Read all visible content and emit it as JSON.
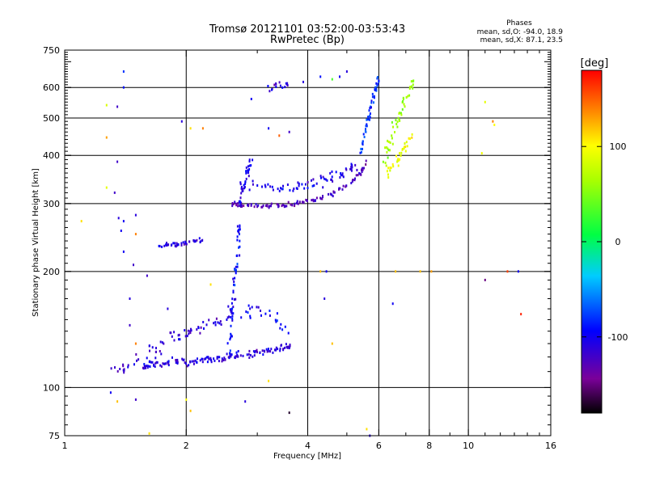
{
  "chart_data": {
    "type": "scatter",
    "title": "Tromsø 20121101 03:52:00-03:53:43",
    "subtitle": "RwPretec (Bp)",
    "xlabel": "Frequency [MHz]",
    "ylabel": "Stationary phase Virtual Height [km]",
    "x_scale": "log",
    "y_scale": "log",
    "xlim": [
      1,
      16
    ],
    "ylim": [
      75,
      750
    ],
    "x_ticks": [
      1,
      2,
      4,
      6,
      8,
      10,
      16
    ],
    "y_ticks": [
      75,
      100,
      200,
      300,
      400,
      500,
      600,
      750
    ],
    "x_gridlines": [
      2,
      4,
      6,
      8,
      10
    ],
    "y_gridlines": [
      100,
      200,
      300,
      400,
      500,
      600
    ],
    "grid": true,
    "stats": {
      "heading": "Phases",
      "line_o": "mean, sd,O: -94.0, 18.9",
      "line_x": "mean, sd,X: 87.1, 23.5"
    },
    "colorbar": {
      "label": "[deg]",
      "range": [
        -180,
        180
      ],
      "ticks": [
        100,
        0,
        -100
      ],
      "tick_labels": [
        "100",
        "0",
        "-100"
      ]
    },
    "traces": [
      {
        "x": [
          1.55,
          1.6,
          1.66,
          1.75,
          1.85,
          1.95,
          2.05,
          2.15,
          2.25,
          2.35,
          2.45,
          2.55,
          2.65,
          2.8,
          2.95,
          3.1,
          3.25,
          3.4,
          3.55,
          3.65
        ],
        "y": [
          112,
          114,
          116,
          115,
          117,
          118,
          116,
          117,
          118,
          118,
          119,
          120,
          121,
          122,
          123,
          124,
          125,
          126,
          127,
          128
        ],
        "phase": -110,
        "jitter": 0.03
      },
      {
        "x": [
          1.3,
          1.4,
          1.55,
          1.7,
          1.85,
          2.0,
          2.15,
          2.3,
          2.45,
          2.6
        ],
        "y": [
          110,
          113,
          120,
          128,
          133,
          138,
          142,
          146,
          150,
          155
        ],
        "phase": -115,
        "jitter": 0.06
      },
      {
        "x": [
          2.55,
          2.58,
          2.6,
          2.62,
          2.65,
          2.68,
          2.7,
          2.72
        ],
        "y": [
          120,
          140,
          160,
          180,
          200,
          220,
          250,
          270
        ],
        "phase": -95,
        "jitter": 0.035
      },
      {
        "x": [
          1.7,
          1.8,
          1.9,
          2.0,
          2.1,
          2.2
        ],
        "y": [
          232,
          234,
          236,
          238,
          240,
          242
        ],
        "phase": -110,
        "jitter": 0.02
      },
      {
        "x": [
          2.6,
          2.7,
          2.8,
          3.0,
          3.2,
          3.4,
          3.6,
          3.8,
          4.0,
          4.3,
          4.6,
          4.9,
          5.2,
          5.4,
          5.6
        ],
        "y": [
          300,
          298,
          297,
          296,
          295,
          296,
          298,
          301,
          305,
          310,
          318,
          330,
          345,
          360,
          385
        ],
        "phase": -125,
        "jitter": 0.02
      },
      {
        "x": [
          2.7,
          3.0,
          3.3,
          3.6,
          3.9,
          4.2,
          4.5,
          4.8,
          5.1,
          5.4
        ],
        "y": [
          340,
          335,
          330,
          330,
          335,
          340,
          350,
          360,
          370,
          385
        ],
        "phase": -105,
        "jitter": 0.05
      },
      {
        "x": [
          2.7,
          2.75,
          2.8,
          2.85,
          2.9
        ],
        "y": [
          300,
          320,
          345,
          370,
          395
        ],
        "phase": -105,
        "jitter": 0.03
      },
      {
        "x": [
          5.4,
          5.5,
          5.6,
          5.7,
          5.8,
          5.9,
          6.0
        ],
        "y": [
          400,
          440,
          480,
          520,
          560,
          600,
          630
        ],
        "phase": -80,
        "jitter": 0.03
      },
      {
        "x": [
          6.2,
          6.3,
          6.5,
          6.7,
          6.9,
          7.1,
          7.3
        ],
        "y": [
          380,
          420,
          460,
          500,
          540,
          580,
          620
        ],
        "phase": 60,
        "jitter": 0.05
      },
      {
        "x": [
          6.3,
          6.5,
          6.8,
          7.0,
          7.3
        ],
        "y": [
          360,
          380,
          400,
          420,
          450
        ],
        "phase": 95,
        "jitter": 0.05
      },
      {
        "x": [
          3.2,
          3.4,
          3.6
        ],
        "y": [
          600,
          610,
          605
        ],
        "phase": -110,
        "jitter": 0.03
      },
      {
        "x": [
          2.7,
          3.0,
          3.3,
          3.6
        ],
        "y": [
          150,
          160,
          150,
          140
        ],
        "phase": -100,
        "jitter": 0.08
      }
    ],
    "sparse_points": [
      {
        "x": 1.4,
        "y": 660,
        "phase": -80
      },
      {
        "x": 1.4,
        "y": 600,
        "phase": -90
      },
      {
        "x": 1.27,
        "y": 540,
        "phase": 85
      },
      {
        "x": 1.35,
        "y": 535,
        "phase": -120
      },
      {
        "x": 1.27,
        "y": 445,
        "phase": 130
      },
      {
        "x": 1.35,
        "y": 385,
        "phase": -120
      },
      {
        "x": 1.27,
        "y": 330,
        "phase": 90
      },
      {
        "x": 1.33,
        "y": 320,
        "phase": -120
      },
      {
        "x": 1.36,
        "y": 275,
        "phase": -110
      },
      {
        "x": 1.4,
        "y": 270,
        "phase": -100
      },
      {
        "x": 1.38,
        "y": 255,
        "phase": -100
      },
      {
        "x": 1.1,
        "y": 270,
        "phase": 110
      },
      {
        "x": 1.5,
        "y": 280,
        "phase": -110
      },
      {
        "x": 1.5,
        "y": 250,
        "phase": 140
      },
      {
        "x": 1.48,
        "y": 208,
        "phase": -120
      },
      {
        "x": 1.4,
        "y": 225,
        "phase": -100
      },
      {
        "x": 2.05,
        "y": 470,
        "phase": 110
      },
      {
        "x": 1.95,
        "y": 490,
        "phase": -110
      },
      {
        "x": 2.2,
        "y": 470,
        "phase": 140
      },
      {
        "x": 3.2,
        "y": 470,
        "phase": -100
      },
      {
        "x": 3.4,
        "y": 450,
        "phase": 150
      },
      {
        "x": 3.6,
        "y": 460,
        "phase": -120
      },
      {
        "x": 4.45,
        "y": 200,
        "phase": -100
      },
      {
        "x": 4.3,
        "y": 200,
        "phase": 120
      },
      {
        "x": 6.6,
        "y": 200,
        "phase": 120
      },
      {
        "x": 7.6,
        "y": 200,
        "phase": 120
      },
      {
        "x": 8.1,
        "y": 200,
        "phase": 130
      },
      {
        "x": 11.0,
        "y": 190,
        "phase": -150
      },
      {
        "x": 12.5,
        "y": 200,
        "phase": 160
      },
      {
        "x": 13.3,
        "y": 200,
        "phase": -100
      },
      {
        "x": 13.5,
        "y": 155,
        "phase": 170
      },
      {
        "x": 11.0,
        "y": 550,
        "phase": 90
      },
      {
        "x": 11.5,
        "y": 490,
        "phase": 140
      },
      {
        "x": 11.6,
        "y": 480,
        "phase": 100
      },
      {
        "x": 10.8,
        "y": 405,
        "phase": 95
      },
      {
        "x": 6.5,
        "y": 165,
        "phase": -100
      },
      {
        "x": 4.4,
        "y": 170,
        "phase": -110
      },
      {
        "x": 4.6,
        "y": 130,
        "phase": 120
      },
      {
        "x": 1.3,
        "y": 97,
        "phase": -100
      },
      {
        "x": 1.35,
        "y": 92,
        "phase": 120
      },
      {
        "x": 1.5,
        "y": 93,
        "phase": -120
      },
      {
        "x": 1.62,
        "y": 76,
        "phase": 110
      },
      {
        "x": 2.0,
        "y": 93,
        "phase": 100
      },
      {
        "x": 2.05,
        "y": 87,
        "phase": 120
      },
      {
        "x": 2.8,
        "y": 92,
        "phase": -110
      },
      {
        "x": 3.2,
        "y": 104,
        "phase": 110
      },
      {
        "x": 3.6,
        "y": 86,
        "phase": -170
      },
      {
        "x": 5.7,
        "y": 75,
        "phase": -110
      },
      {
        "x": 5.6,
        "y": 78,
        "phase": 110
      },
      {
        "x": 1.5,
        "y": 130,
        "phase": 140
      },
      {
        "x": 1.45,
        "y": 145,
        "phase": -120
      },
      {
        "x": 1.8,
        "y": 160,
        "phase": -110
      },
      {
        "x": 2.3,
        "y": 185,
        "phase": 110
      },
      {
        "x": 1.6,
        "y": 195,
        "phase": -120
      },
      {
        "x": 1.45,
        "y": 170,
        "phase": -110
      },
      {
        "x": 2.9,
        "y": 560,
        "phase": -100
      },
      {
        "x": 5.0,
        "y": 660,
        "phase": -110
      },
      {
        "x": 4.8,
        "y": 640,
        "phase": -100
      },
      {
        "x": 4.6,
        "y": 630,
        "phase": 30
      },
      {
        "x": 4.3,
        "y": 640,
        "phase": -90
      },
      {
        "x": 3.9,
        "y": 620,
        "phase": -110
      }
    ]
  }
}
